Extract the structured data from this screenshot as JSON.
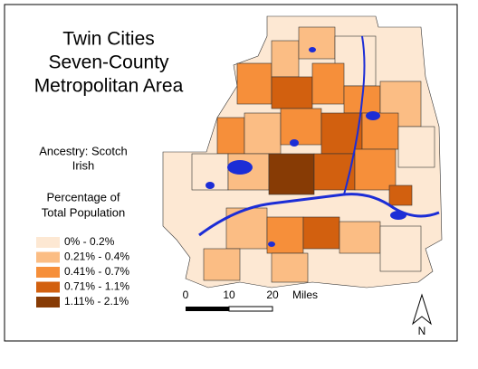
{
  "title": [
    "Twin Cities",
    "Seven-County",
    "Metropolitan Area"
  ],
  "subtitle": [
    "Ancestry: Scotch",
    "Irish"
  ],
  "legend": {
    "title": [
      "Percentage of",
      "Total Population"
    ],
    "items": [
      {
        "label": "0% - 0.2%",
        "color": "#fde8d3"
      },
      {
        "label": "0.21% - 0.4%",
        "color": "#fbbd84"
      },
      {
        "label": "0.41% - 0.7%",
        "color": "#f68f3a"
      },
      {
        "label": "0.71% - 1.1%",
        "color": "#d2600f"
      },
      {
        "label": "1.11% - 2.1%",
        "color": "#873b05"
      }
    ]
  },
  "scale": {
    "labels": [
      "0",
      "10",
      "20"
    ],
    "unit": "Miles"
  },
  "north": "N"
}
